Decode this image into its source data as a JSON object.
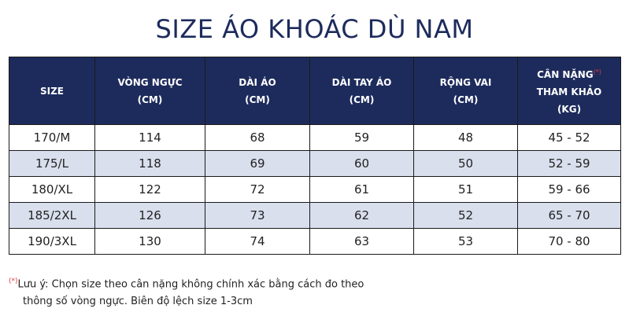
{
  "title": "SIZE ÁO KHOÁC DÙ NAM",
  "table": {
    "headers": [
      {
        "line1": "SIZE",
        "line2": "",
        "line3": ""
      },
      {
        "line1": "VÒNG NGỰC",
        "line2": "(CM)",
        "line3": ""
      },
      {
        "line1": "DÀI ÁO",
        "line2": "(CM)",
        "line3": ""
      },
      {
        "line1": "DÀI TAY ÁO",
        "line2": "(CM)",
        "line3": ""
      },
      {
        "line1": "RỘNG VAI",
        "line2": "(CM)",
        "line3": ""
      },
      {
        "line1": "CÂN NẶNG",
        "line2": "THAM KHẢO",
        "line3": "(KG)"
      }
    ],
    "weight_mark": "(*)",
    "rows": [
      [
        "170/M",
        "114",
        "68",
        "59",
        "48",
        "45 - 52"
      ],
      [
        "175/L",
        "118",
        "69",
        "60",
        "50",
        "52 - 59"
      ],
      [
        "180/XL",
        "122",
        "72",
        "61",
        "51",
        "59 - 66"
      ],
      [
        "185/2XL",
        "126",
        "73",
        "62",
        "52",
        "65 - 70"
      ],
      [
        "190/3XL",
        "130",
        "74",
        "63",
        "53",
        "70 - 80"
      ]
    ]
  },
  "note": {
    "mark": "(*)",
    "line1": "Lưu ý: Chọn size theo cân nặng không chính xác bằng cách đo theo",
    "line2": "thông số vòng ngực. Biên độ lệch size 1-3cm"
  },
  "colors": {
    "header_bg": "#1d2b5c",
    "title": "#1d2b5c",
    "alt_row": "#d9dfec",
    "mark": "#e23a3a"
  }
}
